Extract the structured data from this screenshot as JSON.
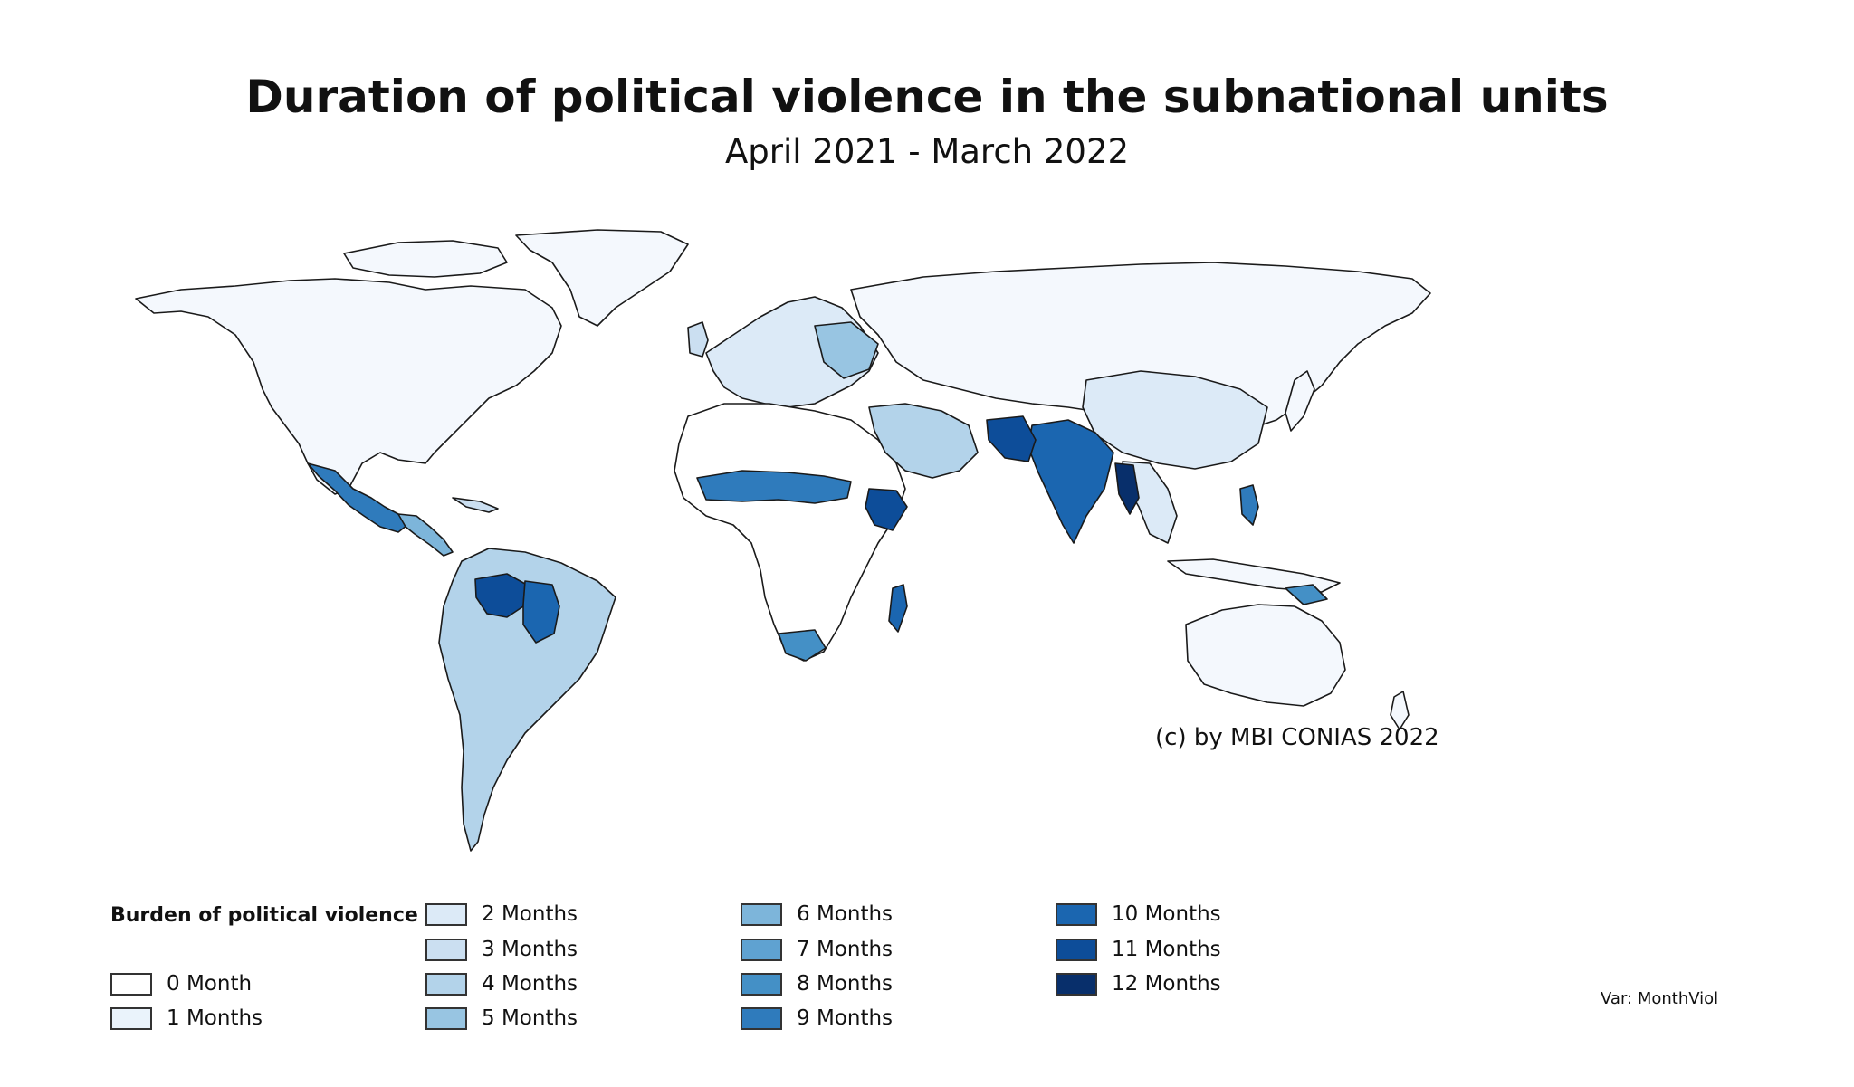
{
  "title": "Duration of political violence in the subnational units",
  "subtitle": "April 2021 - March 2022",
  "copyright": "(c) by MBI CONIAS 2022",
  "var_note": "Var: MonthViol",
  "legend": {
    "title": "Burden of political violence",
    "items": [
      {
        "label": "0 Month",
        "color": "#ffffff"
      },
      {
        "label": "1 Months",
        "color": "#eaf3fb"
      },
      {
        "label": "2 Months",
        "color": "#dceaf7"
      },
      {
        "label": "3 Months",
        "color": "#cbdff1"
      },
      {
        "label": "4 Months",
        "color": "#b3d3ea"
      },
      {
        "label": "5 Months",
        "color": "#98c5e2"
      },
      {
        "label": "6 Months",
        "color": "#7db5da"
      },
      {
        "label": "7 Months",
        "color": "#5fa2d1"
      },
      {
        "label": "8 Months",
        "color": "#4490c6"
      },
      {
        "label": "9 Months",
        "color": "#2f7bbc"
      },
      {
        "label": "10 Months",
        "color": "#1b66b0"
      },
      {
        "label": "11 Months",
        "color": "#0d4d99"
      },
      {
        "label": "12 Months",
        "color": "#082f6b"
      }
    ]
  },
  "map": {
    "land_color": "#f4f8fd",
    "border_color": "#1a1a1a"
  }
}
